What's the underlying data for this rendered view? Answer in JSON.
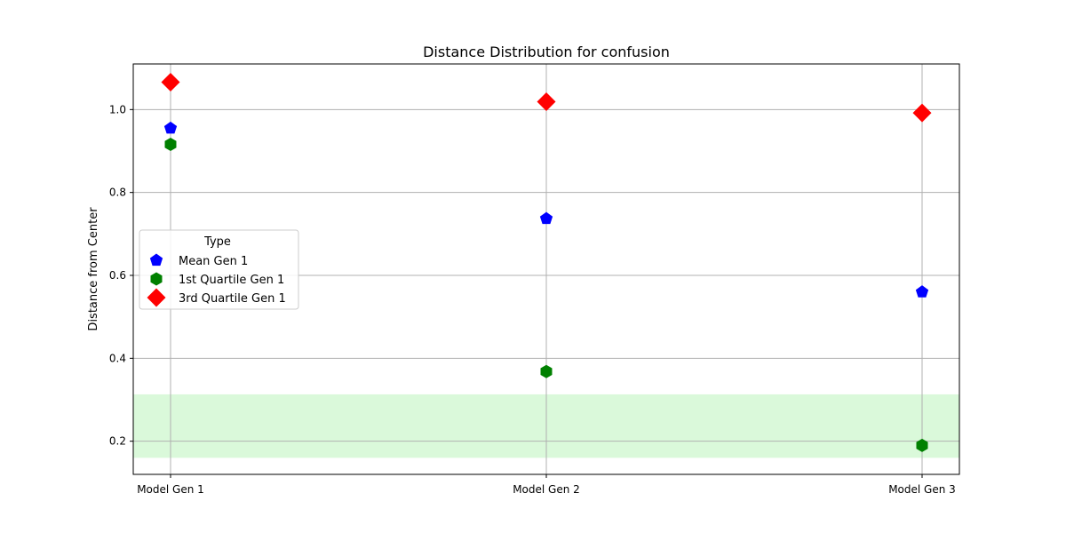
{
  "chart_data": {
    "type": "scatter",
    "title": "Distance Distribution for confusion",
    "xlabel": "",
    "ylabel": "Distance from Center",
    "categories": [
      "Model Gen 1",
      "Model Gen 2",
      "Model Gen 3"
    ],
    "ylim": [
      0.12,
      1.11
    ],
    "yticks": [
      0.2,
      0.4,
      0.6,
      0.8,
      1.0
    ],
    "ytick_labels": [
      "0.2",
      "0.4",
      "0.6",
      "0.8",
      "1.0"
    ],
    "grid": true,
    "shaded_band": {
      "y0": 0.16,
      "y1": 0.313,
      "color": "#90EE90"
    },
    "legend": {
      "title": "Type",
      "placement": "center-left"
    },
    "series": [
      {
        "name": "Mean Gen 1",
        "marker": "pentagon",
        "color": "#0000FF",
        "values": [
          0.955,
          0.737,
          0.56
        ]
      },
      {
        "name": "1st Quartile Gen 1",
        "marker": "hexagon",
        "color": "#008000",
        "values": [
          0.916,
          0.368,
          0.19
        ]
      },
      {
        "name": "3rd Quartile Gen 1",
        "marker": "diamond",
        "color": "#FF0000",
        "values": [
          1.066,
          1.019,
          0.992
        ]
      }
    ]
  }
}
